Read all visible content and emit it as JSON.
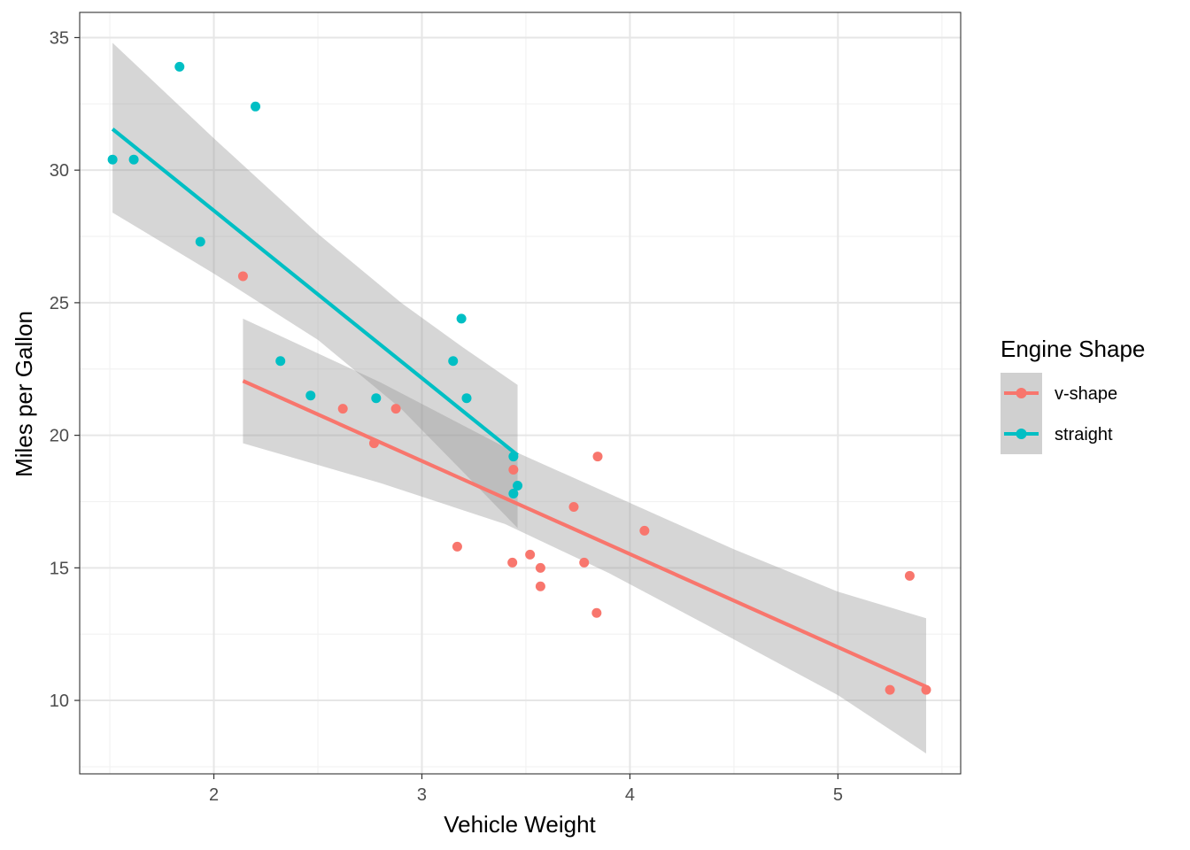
{
  "chart_data": {
    "type": "scatter",
    "xlabel": "Vehicle Weight",
    "ylabel": "Miles per Gallon",
    "xlim": [
      1.355,
      5.59
    ],
    "ylim": [
      7.23,
      35.95
    ],
    "x_ticks": [
      2,
      3,
      4,
      5
    ],
    "y_ticks": [
      10,
      15,
      20,
      25,
      30,
      35
    ],
    "grid": true,
    "legend": {
      "title": "Engine Shape",
      "position": "right"
    },
    "series": [
      {
        "name": "v-shape",
        "color": "#F8766D",
        "points": [
          [
            2.62,
            21.0
          ],
          [
            2.875,
            21.0
          ],
          [
            3.44,
            18.7
          ],
          [
            3.57,
            14.3
          ],
          [
            4.07,
            16.4
          ],
          [
            3.73,
            17.3
          ],
          [
            3.78,
            15.2
          ],
          [
            5.25,
            10.4
          ],
          [
            5.424,
            10.4
          ],
          [
            5.345,
            14.7
          ],
          [
            3.52,
            15.5
          ],
          [
            3.435,
            15.2
          ],
          [
            3.84,
            13.3
          ],
          [
            3.845,
            19.2
          ],
          [
            2.14,
            26.0
          ],
          [
            3.17,
            15.8
          ],
          [
            2.77,
            19.7
          ],
          [
            3.57,
            15.0
          ]
        ],
        "fit": {
          "x": [
            2.14,
            5.424
          ],
          "y": [
            22.05,
            10.52
          ]
        },
        "ci": {
          "x": [
            2.14,
            2.8,
            3.4,
            3.9,
            4.5,
            5.0,
            5.424
          ],
          "lower": [
            19.7,
            18.2,
            16.65,
            14.8,
            12.3,
            10.2,
            8.0
          ],
          "upper": [
            24.4,
            22.0,
            19.55,
            17.8,
            15.7,
            14.1,
            13.1
          ]
        }
      },
      {
        "name": "straight",
        "color": "#00BFC4",
        "points": [
          [
            2.32,
            22.8
          ],
          [
            3.215,
            21.4
          ],
          [
            3.46,
            18.1
          ],
          [
            3.19,
            24.4
          ],
          [
            3.15,
            22.8
          ],
          [
            3.44,
            19.2
          ],
          [
            3.44,
            17.8
          ],
          [
            2.2,
            32.4
          ],
          [
            1.615,
            30.4
          ],
          [
            1.835,
            33.9
          ],
          [
            2.465,
            21.5
          ],
          [
            1.935,
            27.3
          ],
          [
            1.513,
            30.4
          ],
          [
            2.78,
            21.4
          ]
        ],
        "fit": {
          "x": [
            1.513,
            3.46
          ],
          "y": [
            31.55,
            19.25
          ]
        },
        "ci": {
          "x": [
            1.513,
            2.0,
            2.5,
            2.9,
            3.2,
            3.46
          ],
          "lower": [
            28.4,
            26.1,
            23.6,
            21.0,
            18.6,
            16.5
          ],
          "upper": [
            34.8,
            31.2,
            27.6,
            25.0,
            23.3,
            21.9
          ]
        }
      }
    ]
  }
}
